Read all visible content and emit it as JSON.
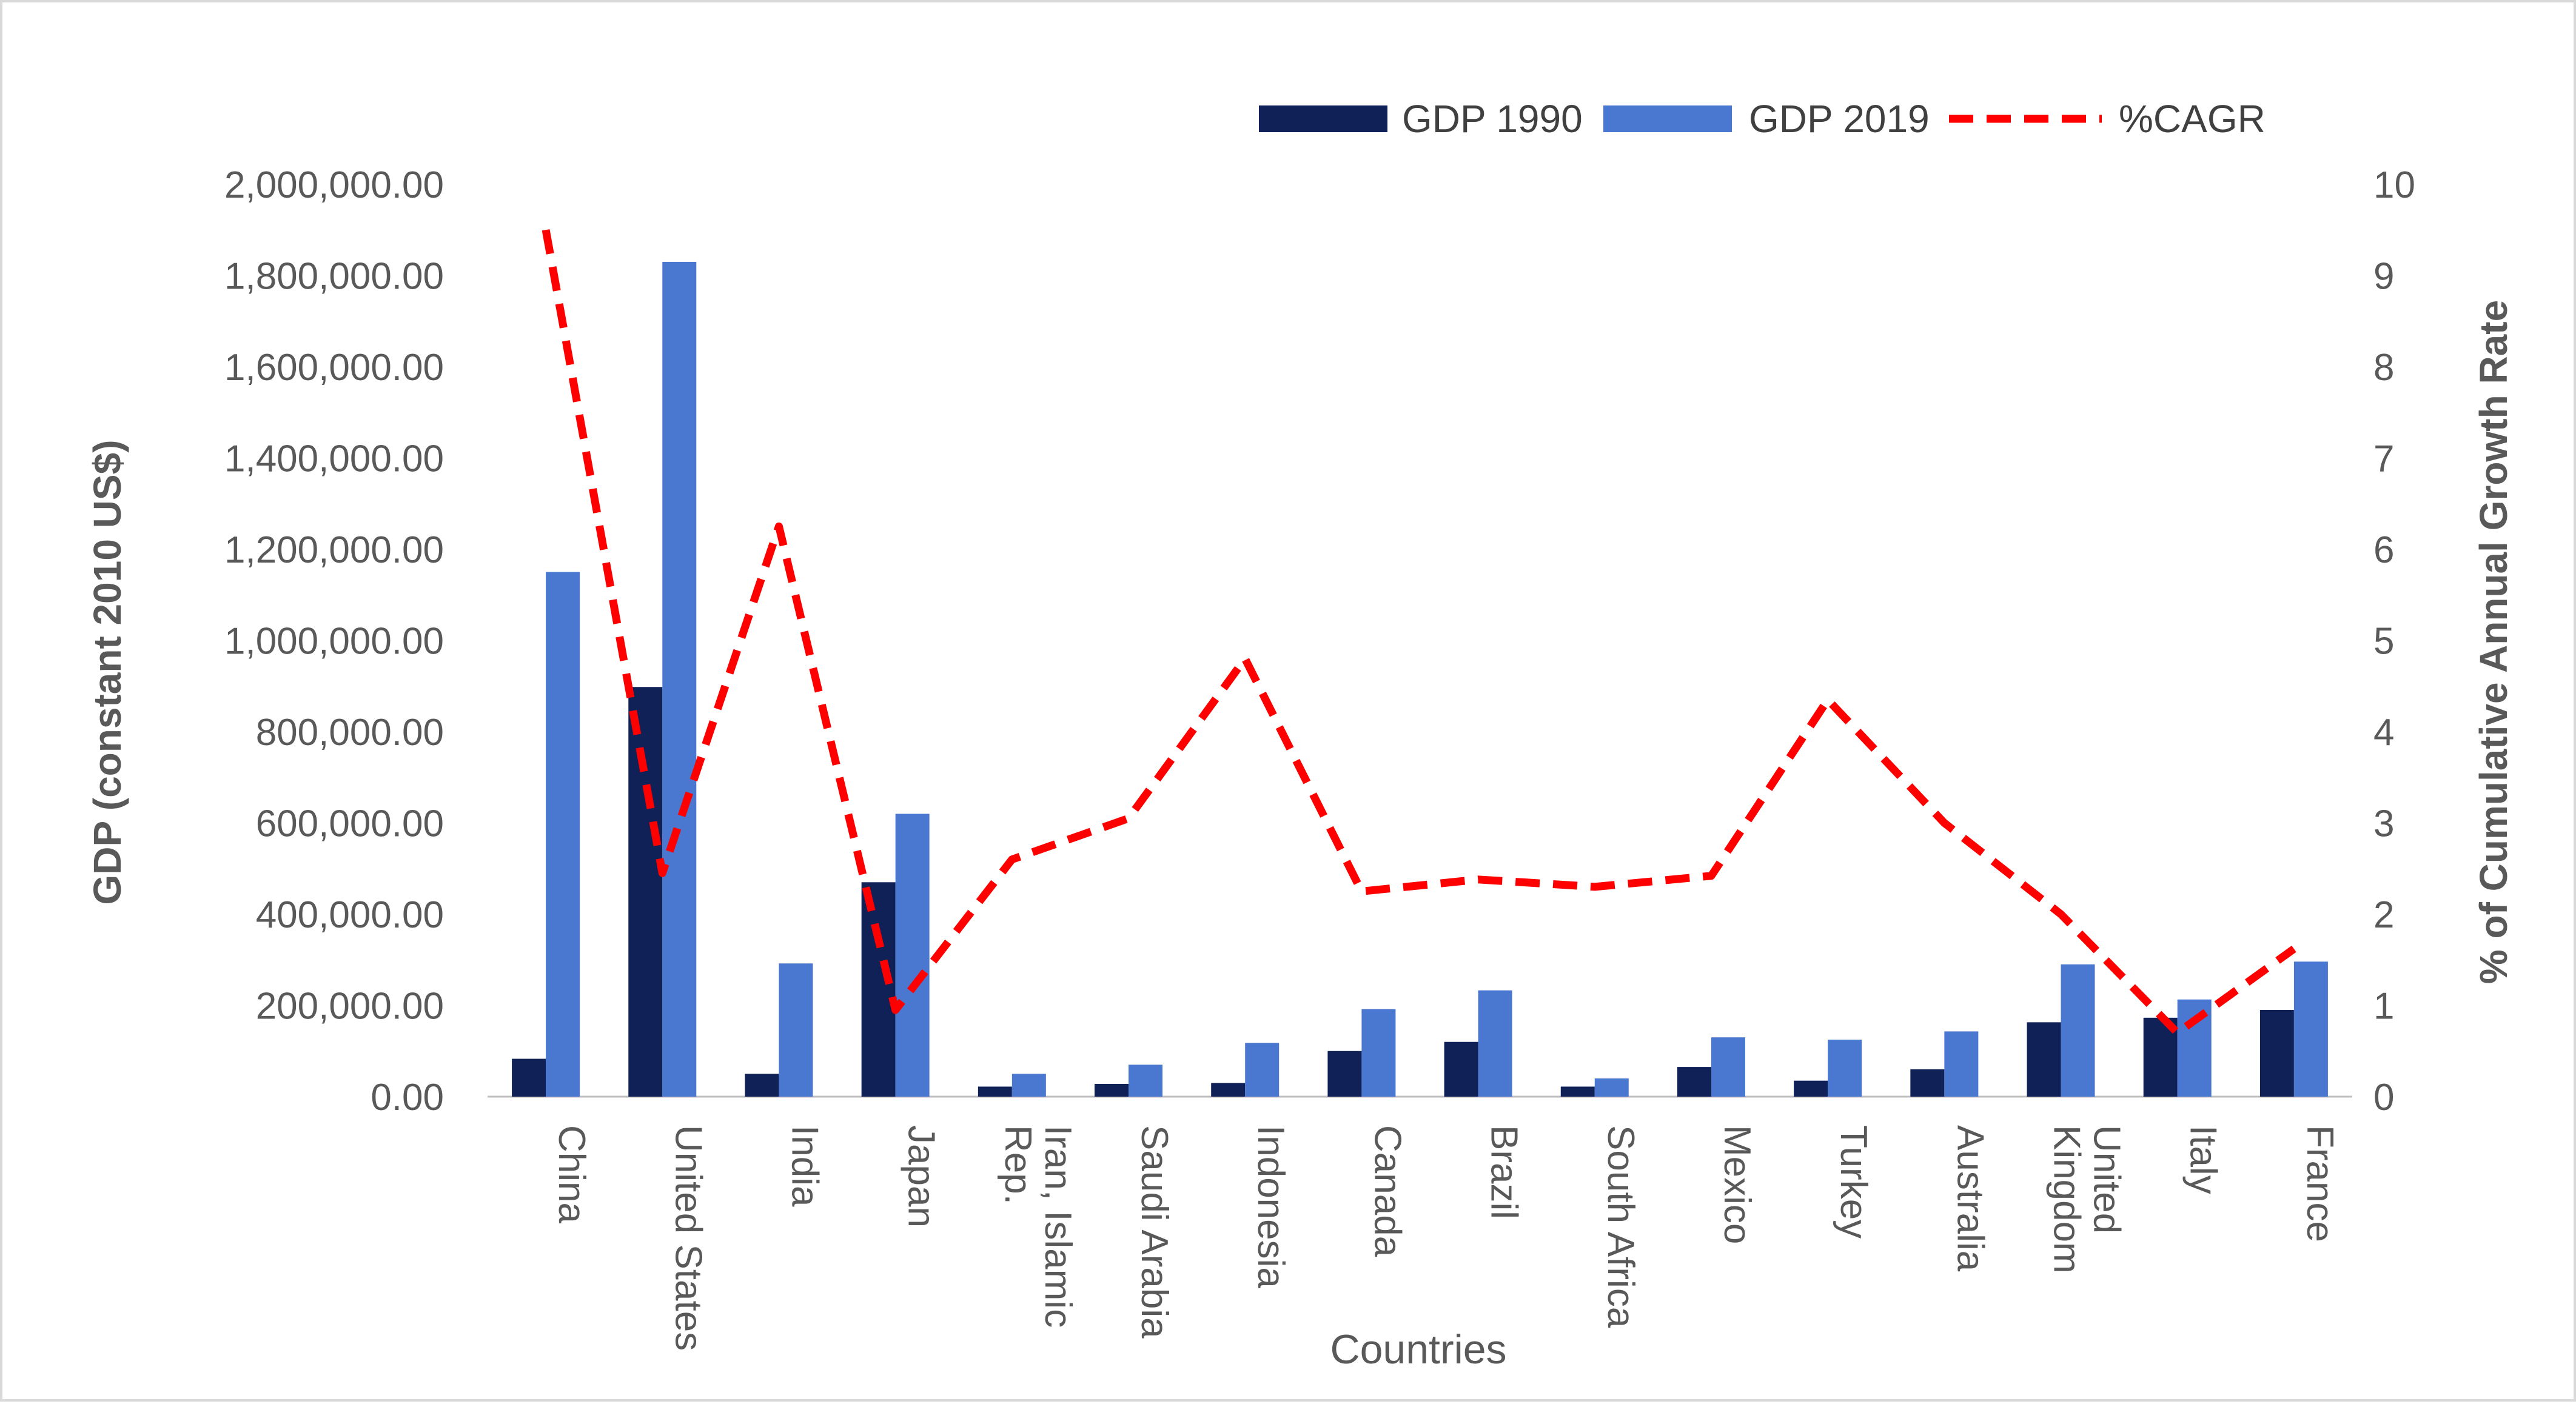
{
  "chart_data": {
    "type": "bar",
    "categories": [
      [
        "China"
      ],
      [
        "United States"
      ],
      [
        "India"
      ],
      [
        "Japan"
      ],
      [
        "Iran, Islamic",
        "Rep."
      ],
      [
        "Saudi Arabia"
      ],
      [
        "Indonesia"
      ],
      [
        "Canada"
      ],
      [
        "Brazil"
      ],
      [
        "South Africa"
      ],
      [
        "Mexico"
      ],
      [
        "Turkey"
      ],
      [
        "Australia"
      ],
      [
        "United",
        "Kingdom"
      ],
      [
        "Italy"
      ],
      [
        "France"
      ]
    ],
    "series": [
      {
        "name": "GDP 1990",
        "type": "bar",
        "axis": "left",
        "color": "#0f2157",
        "values": [
          83000,
          898000,
          50000,
          470000,
          22000,
          28000,
          30000,
          100000,
          120000,
          22000,
          65000,
          35000,
          60000,
          163000,
          173000,
          190000
        ]
      },
      {
        "name": "GDP 2019",
        "type": "bar",
        "axis": "left",
        "color": "#4a78d0",
        "values": [
          1150000,
          1830000,
          292000,
          620000,
          50000,
          70000,
          118000,
          192000,
          233000,
          40000,
          130000,
          125000,
          143000,
          290000,
          213000,
          296000
        ]
      },
      {
        "name": "%CAGR",
        "type": "line",
        "axis": "right",
        "color": "#ff0000",
        "dash": true,
        "values": [
          9.5,
          2.45,
          6.25,
          0.95,
          2.6,
          3.05,
          4.8,
          2.25,
          2.38,
          2.3,
          2.42,
          4.35,
          3.0,
          2.0,
          0.7,
          1.62
        ]
      }
    ],
    "xlabel": "Countries",
    "ylabel": "GDP (constant 2010 US$)",
    "y2label": "% of Cumulative Annual Growth Rate",
    "ylim": [
      0,
      2000000
    ],
    "y2lim": [
      0,
      10
    ],
    "yticks": [
      "0.00",
      "200,000.00",
      "400,000.00",
      "600,000.00",
      "800,000.00",
      "1,000,000.00",
      "1,200,000.00",
      "1,400,000.00",
      "1,600,000.00",
      "1,800,000.00",
      "2,000,000.00"
    ],
    "y2ticks": [
      "0",
      "1",
      "2",
      "3",
      "4",
      "5",
      "6",
      "7",
      "8",
      "9",
      "10"
    ],
    "grid": false,
    "legend_position": "top-right"
  }
}
